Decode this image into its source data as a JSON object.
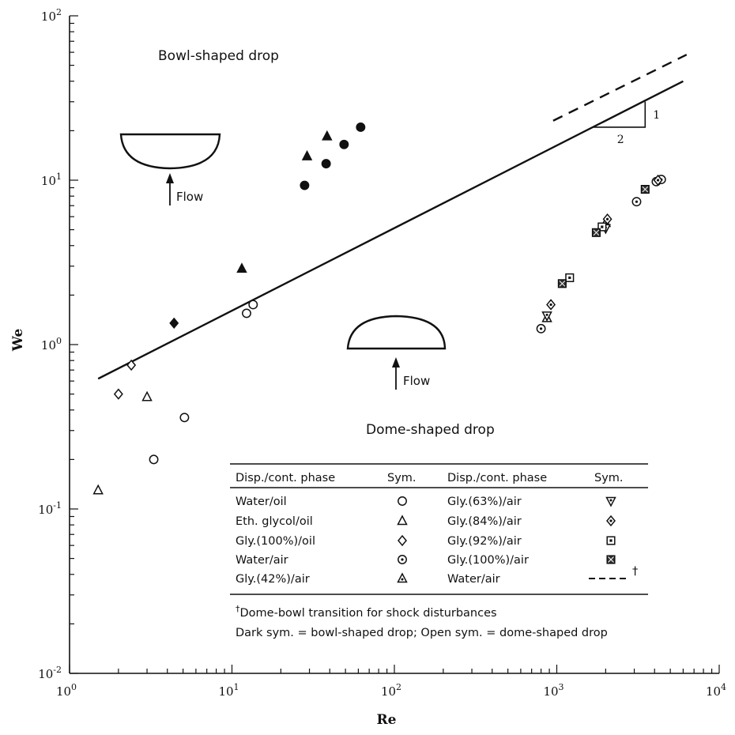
{
  "chart_data": {
    "type": "scatter",
    "xscale": "log",
    "yscale": "log",
    "xlim": [
      1,
      10000
    ],
    "ylim": [
      0.01,
      100
    ],
    "xlabel": "Re",
    "ylabel": "We",
    "xticks": [
      {
        "value": 1,
        "base": "10",
        "exp": "0"
      },
      {
        "value": 10,
        "base": "10",
        "exp": "1"
      },
      {
        "value": 100,
        "base": "10",
        "exp": "2"
      },
      {
        "value": 1000,
        "base": "10",
        "exp": "3"
      },
      {
        "value": 10000,
        "base": "10",
        "exp": "4"
      }
    ],
    "yticks": [
      {
        "value": 0.01,
        "base": "10",
        "exp": "-2"
      },
      {
        "value": 0.1,
        "base": "10",
        "exp": "-1"
      },
      {
        "value": 1,
        "base": "10",
        "exp": "0"
      },
      {
        "value": 10,
        "base": "10",
        "exp": "1"
      },
      {
        "value": 100,
        "base": "10",
        "exp": "2"
      }
    ],
    "lines": [
      {
        "id": "transition",
        "style": "solid",
        "x": [
          1.5,
          6000
        ],
        "y": [
          0.62,
          40
        ]
      },
      {
        "id": "shock",
        "style": "dashed",
        "x": [
          950,
          6300
        ],
        "y": [
          23,
          58
        ]
      }
    ],
    "slope_triangle": {
      "x": [
        1650,
        3500
      ],
      "y": [
        21,
        30
      ],
      "rise_label": "1",
      "run_label": "2"
    },
    "series": [
      {
        "name": "Water/oil",
        "marker": "circle",
        "filled": false,
        "points": [
          [
            3.3,
            0.2
          ],
          [
            5.1,
            0.36
          ],
          [
            12.3,
            1.55
          ],
          [
            13.5,
            1.75
          ]
        ]
      },
      {
        "name": "Eth. glycol/oil",
        "marker": "triangle",
        "filled": false,
        "points": [
          [
            1.5,
            0.13
          ],
          [
            3.0,
            0.48
          ]
        ]
      },
      {
        "name": "Gly.(100%)/oil",
        "marker": "diamond",
        "filled": false,
        "points": [
          [
            2.0,
            0.5
          ],
          [
            2.4,
            0.75
          ]
        ]
      },
      {
        "name": "Gly.(100%)/oil (dark)",
        "marker": "diamond",
        "filled": true,
        "points": [
          [
            4.4,
            1.35
          ]
        ]
      },
      {
        "name": "Water/air",
        "marker": "circle-dot",
        "filled": false,
        "points": [
          [
            800,
            1.25
          ],
          [
            3100,
            7.4
          ],
          [
            4100,
            9.8
          ],
          [
            4400,
            10.1
          ]
        ]
      },
      {
        "name": "Water/air (dark)",
        "marker": "circle",
        "filled": true,
        "points": [
          [
            28,
            9.3
          ],
          [
            38,
            12.6
          ],
          [
            49,
            16.5
          ],
          [
            62,
            21
          ]
        ]
      },
      {
        "name": "Gly.(42%)/air",
        "marker": "triangle-dot",
        "filled": false,
        "points": [
          [
            870,
            1.45
          ],
          [
            2000,
            5.5
          ]
        ]
      },
      {
        "name": "Gly.(42%)/air (dark)",
        "marker": "triangle",
        "filled": true,
        "points": [
          [
            11.5,
            2.9
          ],
          [
            29,
            14
          ],
          [
            38.5,
            18.5
          ]
        ]
      },
      {
        "name": "Gly.(63%)/air",
        "marker": "inv-triangle",
        "filled": false,
        "points": [
          [
            870,
            1.5
          ],
          [
            2000,
            5.1
          ]
        ]
      },
      {
        "name": "Gly.(84%)/air",
        "marker": "diamond-dot",
        "filled": false,
        "points": [
          [
            920,
            1.75
          ],
          [
            2050,
            5.8
          ],
          [
            4200,
            10
          ]
        ]
      },
      {
        "name": "Gly.(92%)/air",
        "marker": "square-dot",
        "filled": false,
        "points": [
          [
            1200,
            2.55
          ],
          [
            1900,
            5.2
          ]
        ]
      },
      {
        "name": "Gly.(100%)/air",
        "marker": "square-x",
        "filled": true,
        "points": [
          [
            1080,
            2.35
          ],
          [
            1750,
            4.8
          ],
          [
            3500,
            8.8
          ]
        ]
      }
    ],
    "annotations": {
      "bowl_region": "Bowl-shaped drop",
      "dome_region": "Dome-shaped drop",
      "flow": "Flow"
    },
    "legend": {
      "placement": "bottom-right",
      "headers": [
        "Disp./cont. phase",
        "Sym.",
        "Disp./cont. phase",
        "Sym."
      ],
      "rows": [
        {
          "left": "Water/oil",
          "left_marker": "circle",
          "right": "Gly.(63%)/air",
          "right_marker": "inv-triangle"
        },
        {
          "left": "Eth. glycol/oil",
          "left_marker": "triangle",
          "right": "Gly.(84%)/air",
          "right_marker": "diamond-dot"
        },
        {
          "left": "Gly.(100%)/oil",
          "left_marker": "diamond",
          "right": "Gly.(92%)/air",
          "right_marker": "square-dot"
        },
        {
          "left": "Water/air",
          "left_marker": "circle-dot",
          "right": "Gly.(100%)/air",
          "right_marker": "square-x"
        },
        {
          "left": "Gly.(42%)/air",
          "left_marker": "triangle-dot",
          "right": "Water/air",
          "right_marker": "dashed-line"
        }
      ],
      "dagger": "†",
      "footnote_1": "Dome-bowl transition for shock disturbances",
      "footnote_2": "Dark sym. = bowl-shaped drop; Open sym. = dome-shaped drop"
    }
  }
}
